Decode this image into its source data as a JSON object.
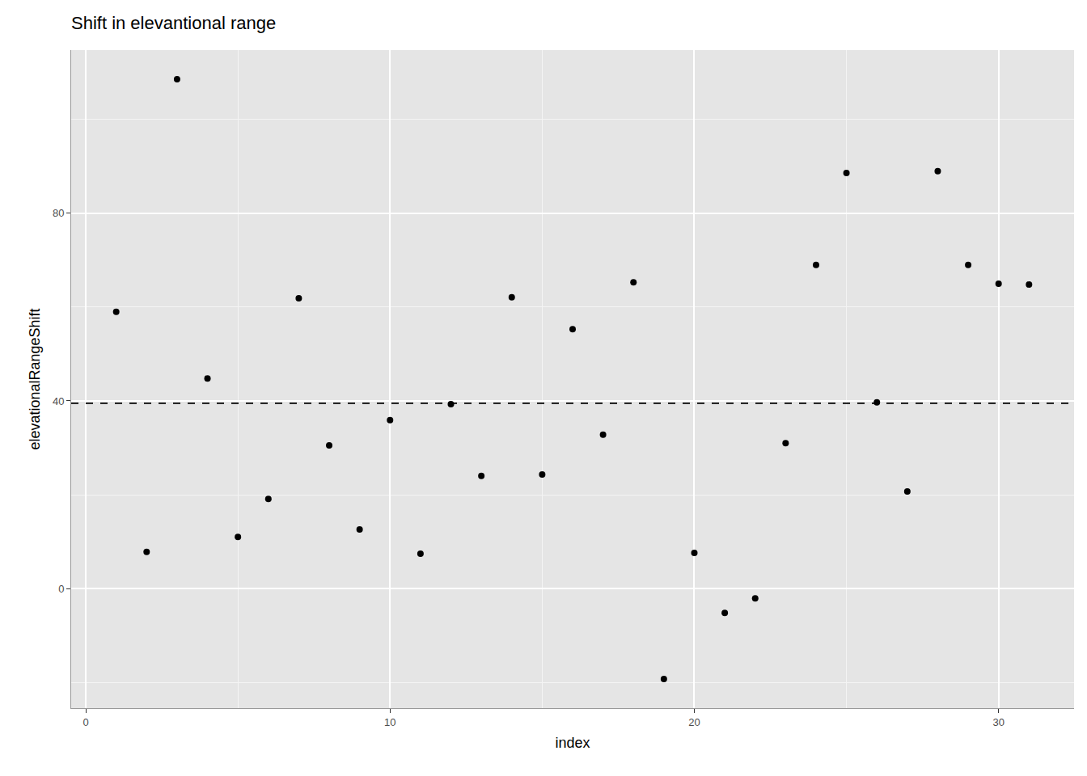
{
  "chart_data": {
    "type": "scatter",
    "title": "Shift in elevantional range",
    "x_label": "index",
    "y_label": "elevationalRangeShift",
    "x": [
      1,
      2,
      3,
      4,
      5,
      6,
      7,
      8,
      9,
      10,
      11,
      12,
      13,
      14,
      15,
      16,
      17,
      18,
      19,
      20,
      21,
      22,
      23,
      24,
      25,
      26,
      27,
      28,
      29,
      30,
      31
    ],
    "values": [
      59.0,
      7.8,
      108.6,
      44.8,
      11.0,
      19.1,
      61.9,
      30.5,
      12.6,
      35.9,
      7.4,
      39.3,
      24.0,
      62.1,
      24.3,
      55.3,
      32.8,
      65.3,
      -19.3,
      7.6,
      -5.2,
      -2.1,
      31.0,
      69.0,
      88.6,
      39.7,
      20.7,
      89.0,
      69.0,
      65.0,
      64.8
    ],
    "color": "#000000",
    "marker": "circle",
    "reference_line": 39.5,
    "line_style": "dash",
    "xlim": [
      -0.48,
      32.48
    ],
    "ylim": [
      -25.5,
      114.8
    ],
    "xticks": [
      0,
      10,
      20,
      30
    ],
    "yticks": [
      0,
      40,
      80
    ],
    "grid": true
  }
}
